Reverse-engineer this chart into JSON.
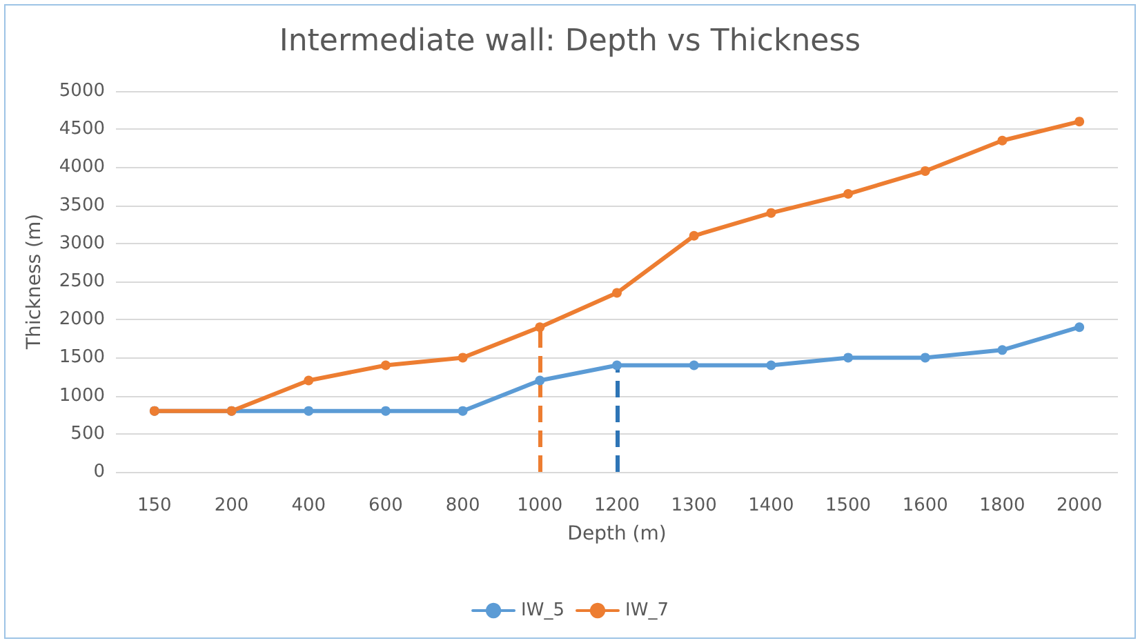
{
  "chart_data": {
    "type": "line",
    "title": "Intermediate wall: Depth vs Thickness",
    "xlabel": "Depth (m)",
    "ylabel": "Thickness (m)",
    "categories": [
      "150",
      "200",
      "400",
      "600",
      "800",
      "1000",
      "1200",
      "1300",
      "1400",
      "1500",
      "1600",
      "1800",
      "2000"
    ],
    "series": [
      {
        "name": "IW_5",
        "color": "#5b9bd5",
        "values": [
          800,
          800,
          800,
          800,
          800,
          1200,
          1400,
          1400,
          1400,
          1500,
          1500,
          1600,
          1900
        ]
      },
      {
        "name": "IW_7",
        "color": "#ed7d31",
        "values": [
          800,
          800,
          1200,
          1400,
          1500,
          1900,
          2350,
          3100,
          3400,
          3650,
          3950,
          4350,
          4600
        ]
      }
    ],
    "ylim": [
      0,
      5000
    ],
    "yticks": [
      0,
      500,
      1000,
      1500,
      2000,
      2500,
      3000,
      3500,
      4000,
      4500,
      5000
    ],
    "ref_lines": [
      {
        "axis": "x",
        "value": "1000",
        "color": "#ed7d31",
        "line_style": "dashed"
      },
      {
        "axis": "x",
        "value": "1200",
        "color": "#2e75b6",
        "line_style": "dashed"
      }
    ],
    "grid": "y",
    "legend": "bottom",
    "marker": "circle",
    "line_style": "solid"
  }
}
